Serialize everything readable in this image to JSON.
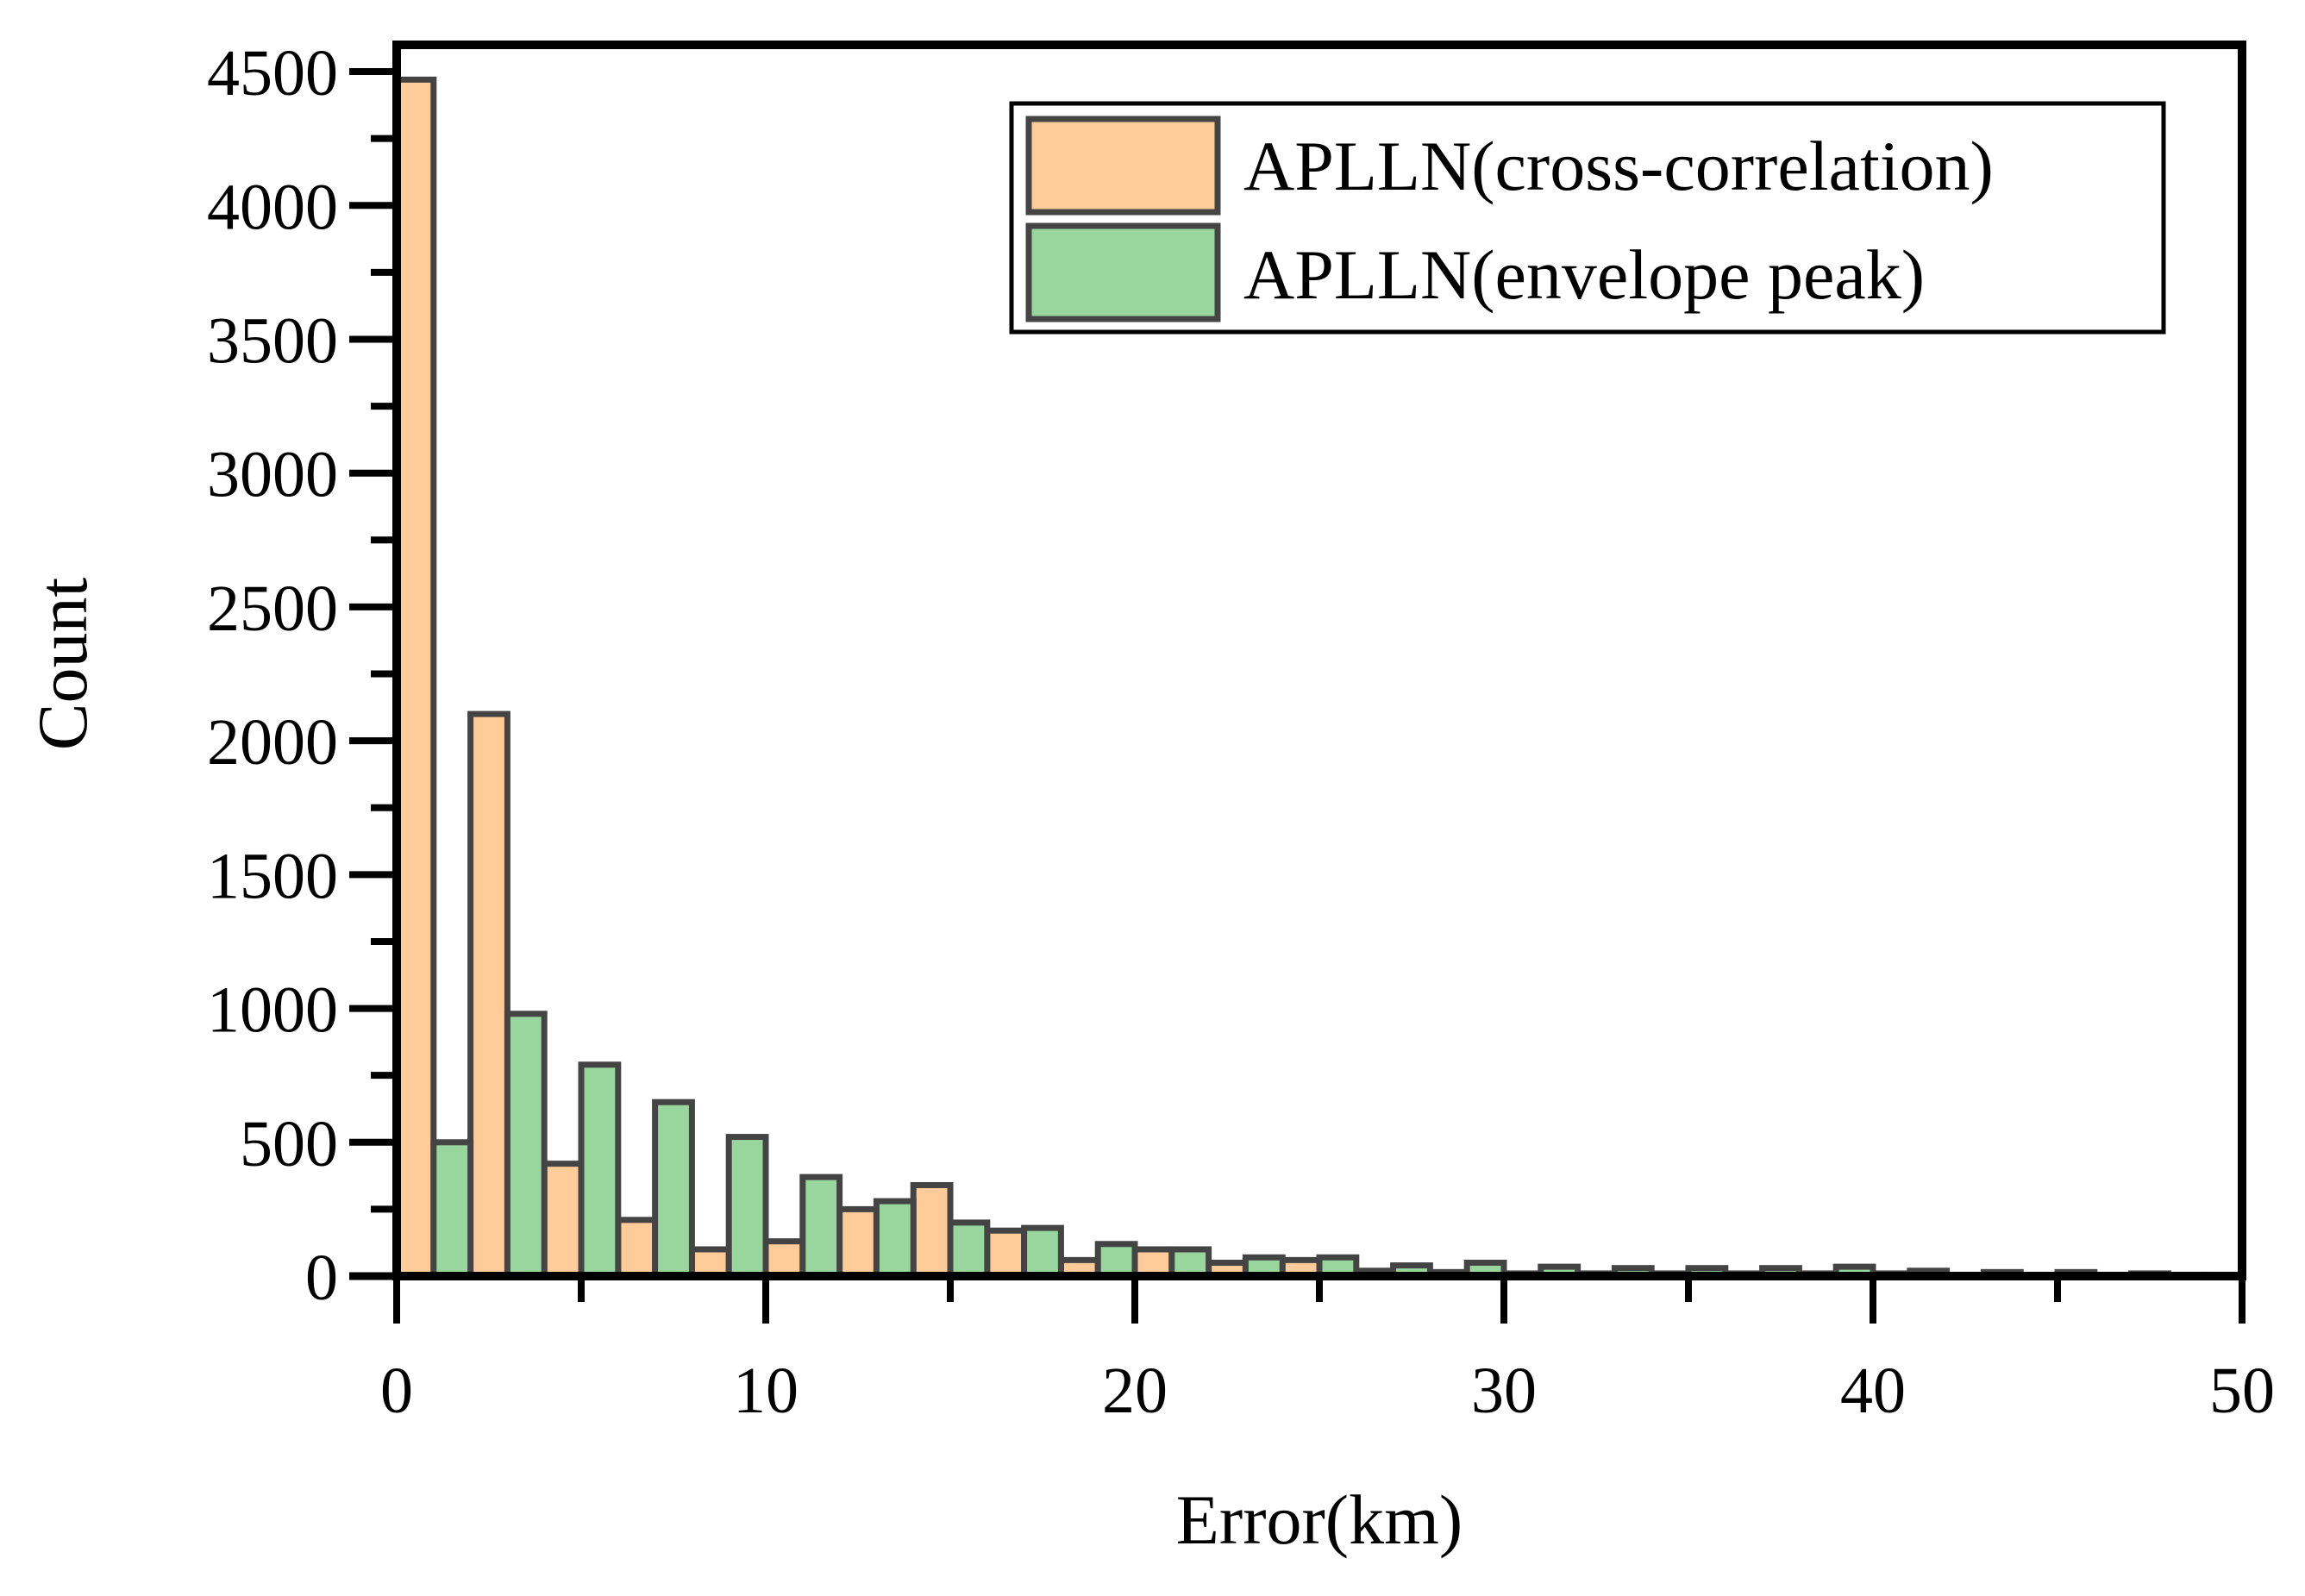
{
  "chart_data": {
    "type": "bar",
    "xlabel": "Error(km)",
    "ylabel": "Count",
    "xlim": [
      0,
      50
    ],
    "ylim": [
      0,
      4600
    ],
    "xticks": [
      0,
      10,
      20,
      30,
      40,
      50
    ],
    "yticks": [
      0,
      500,
      1000,
      1500,
      2000,
      2500,
      3000,
      3500,
      4000,
      4500
    ],
    "bin_width": 1,
    "grid": false,
    "legend_position": "top-right",
    "series": [
      {
        "name": "APLLN(cross-correlation)",
        "color": "#FFCC99",
        "x": [
          0,
          2,
          4,
          6,
          8,
          10,
          12,
          14,
          16,
          18,
          20,
          22,
          24,
          26,
          28,
          30,
          32,
          34,
          36,
          38,
          40,
          42,
          44,
          46,
          48
        ],
        "values": [
          4470,
          2100,
          420,
          210,
          100,
          130,
          250,
          340,
          170,
          60,
          100,
          50,
          60,
          20,
          15,
          10,
          10,
          10,
          10,
          10,
          10,
          5,
          5,
          5,
          5
        ]
      },
      {
        "name": "APLLN(envelope peak)",
        "color": "#99D69E",
        "x": [
          1,
          3,
          5,
          7,
          9,
          11,
          13,
          15,
          17,
          19,
          21,
          23,
          25,
          27,
          29,
          31,
          33,
          35,
          37,
          39,
          41,
          43,
          45,
          47,
          49
        ],
        "values": [
          500,
          980,
          790,
          650,
          520,
          370,
          280,
          200,
          180,
          120,
          100,
          70,
          70,
          40,
          50,
          35,
          30,
          30,
          30,
          35,
          20,
          15,
          15,
          10,
          5
        ]
      }
    ]
  }
}
